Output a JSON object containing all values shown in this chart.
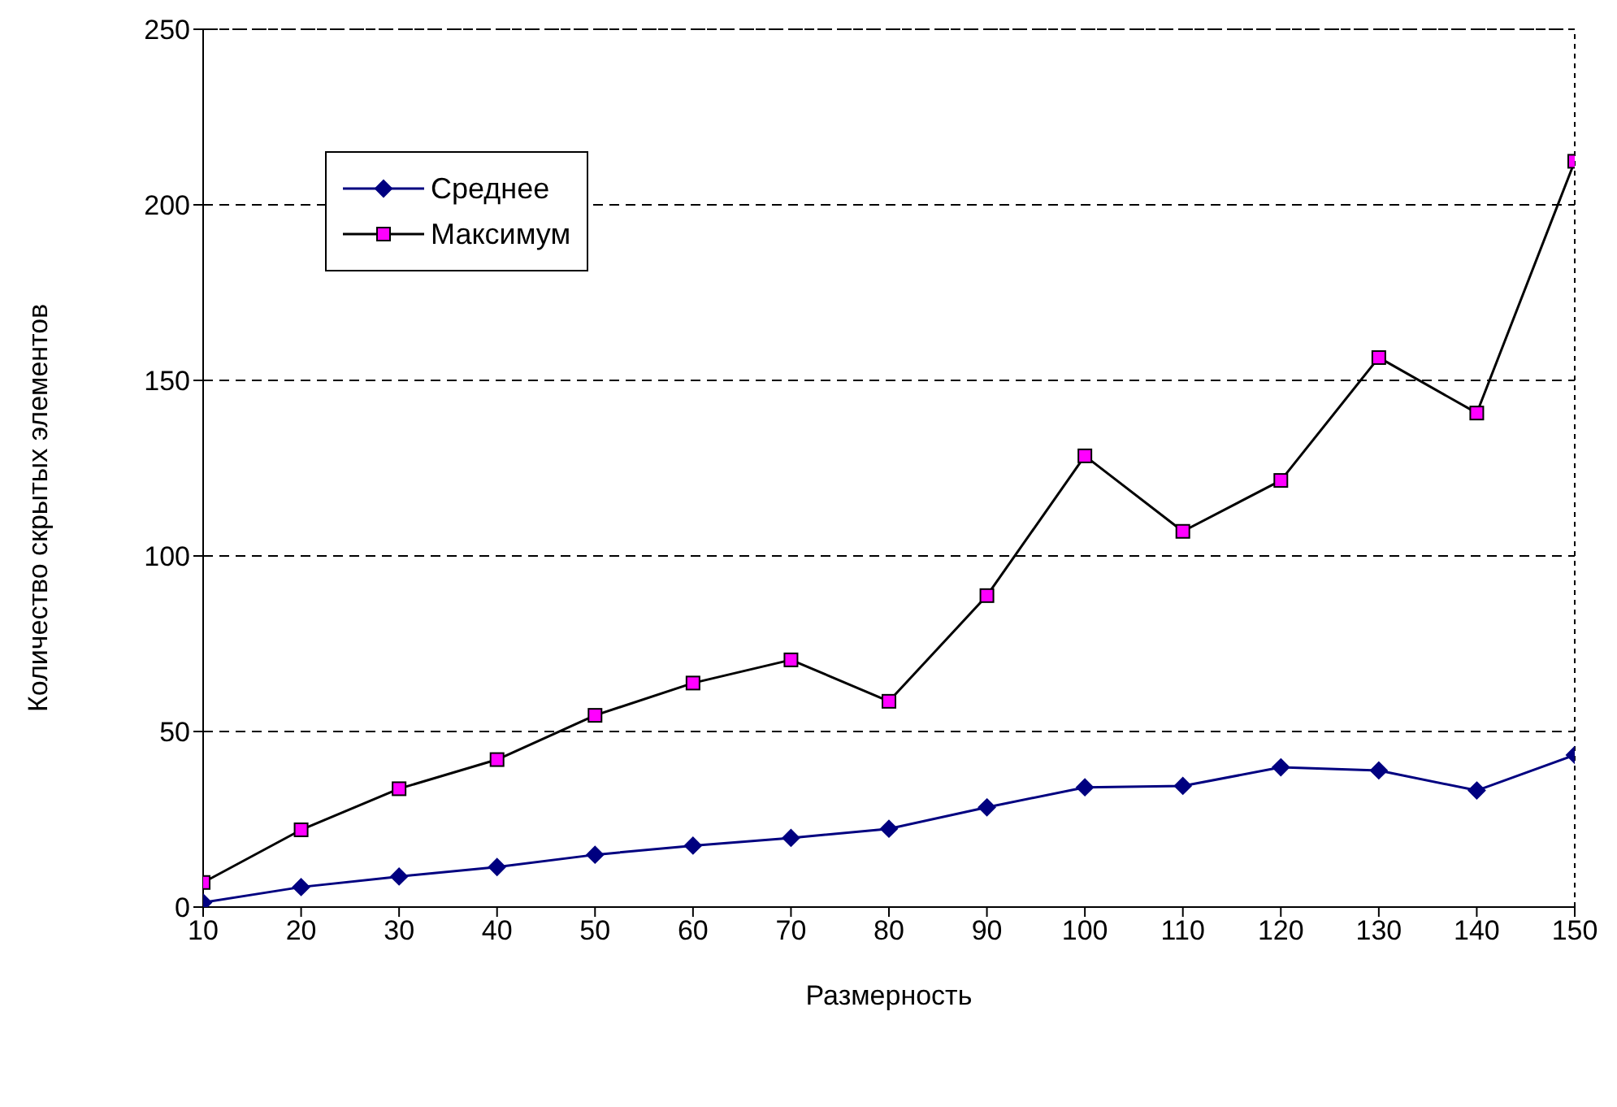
{
  "chart_data": {
    "type": "line",
    "xlabel": "Размерность",
    "ylabel": "Количество скрытых элементов",
    "x": [
      10,
      20,
      30,
      40,
      50,
      60,
      70,
      80,
      90,
      100,
      110,
      120,
      130,
      140,
      150
    ],
    "series": [
      {
        "name": "Среднее",
        "color": "#000080",
        "marker": "diamond",
        "values": [
          1.3,
          5.7,
          8.7,
          11.4,
          14.9,
          17.5,
          19.7,
          22.3,
          28.4,
          34.1,
          34.5,
          39.8,
          38.9,
          33.2,
          43.3
        ]
      },
      {
        "name": "Максимум",
        "color": "#ff00ff",
        "marker": "square",
        "values": [
          7,
          22,
          33.7,
          42,
          54.6,
          63.8,
          70.4,
          58.6,
          88.7,
          128.5,
          107,
          121.5,
          156.5,
          140.7,
          212.4
        ]
      }
    ],
    "xlim": [
      10,
      150
    ],
    "xticks": [
      10,
      20,
      30,
      40,
      50,
      60,
      70,
      80,
      90,
      100,
      110,
      120,
      130,
      140,
      150
    ],
    "ylim": [
      0,
      250
    ],
    "yticks": [
      0,
      50,
      100,
      150,
      200,
      250
    ],
    "grid": "y",
    "legend": "top left",
    "line_style": "solid"
  }
}
